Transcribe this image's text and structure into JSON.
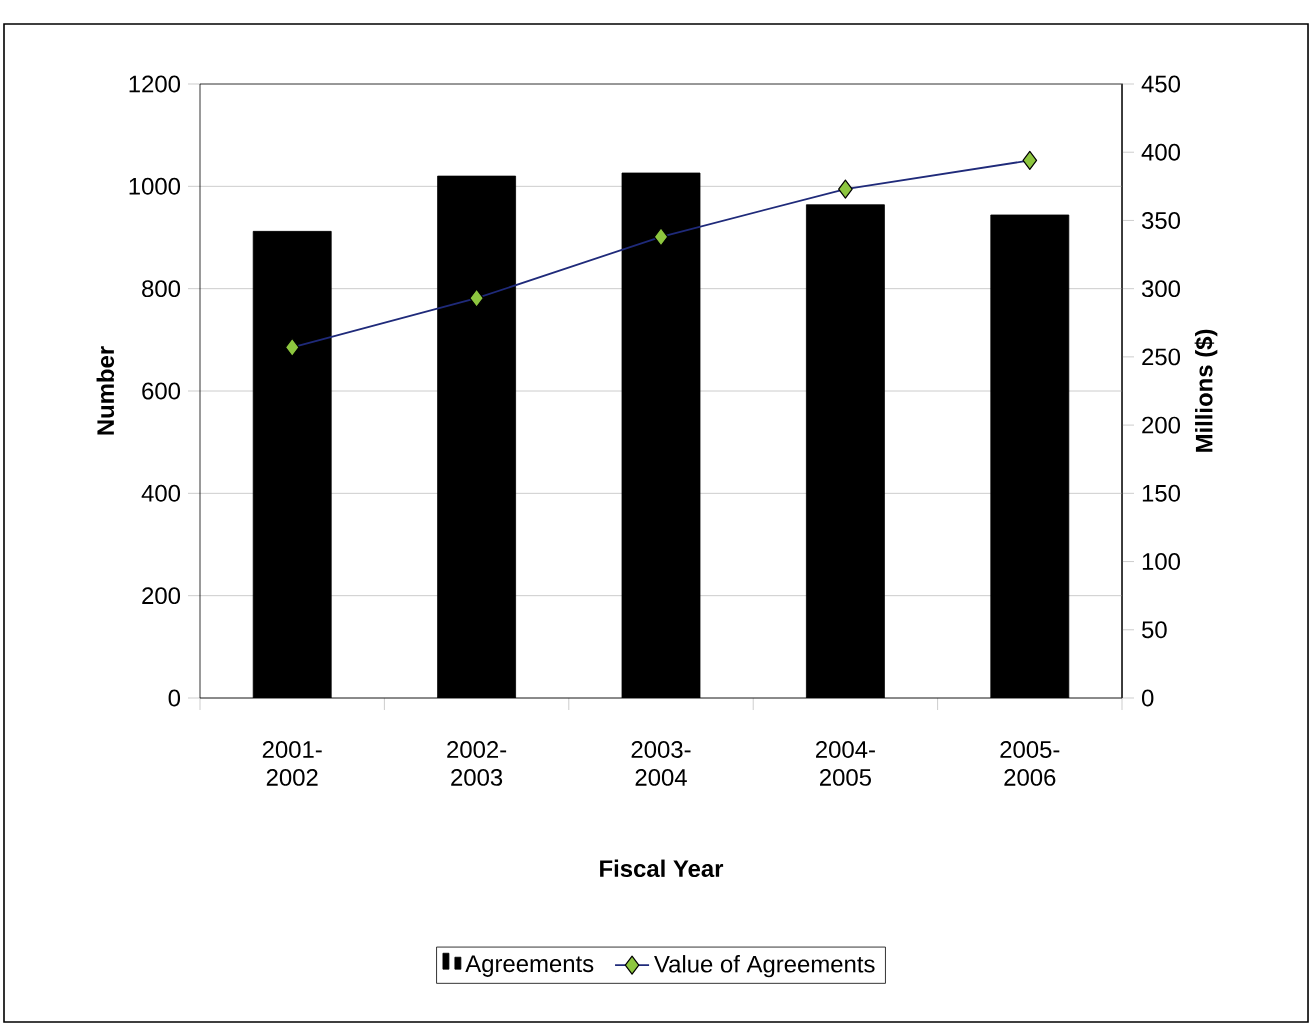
{
  "chart_data": {
    "type": "bar",
    "xlabel": "Fiscal Year",
    "ylabel": "Number",
    "y2label": "Millions ($)",
    "categories": [
      "2001-2002",
      "2002-2003",
      "2003-2004",
      "2004-2005",
      "2005-2006"
    ],
    "series": [
      {
        "name": "Agreements",
        "color": "#000000",
        "values": [
          912,
          1020,
          1026,
          964,
          944
        ]
      },
      {
        "name": "Value of Agreements",
        "type": "line",
        "axis": "y2",
        "color": "#1f2a7a",
        "marker": "diamond",
        "values": [
          257,
          293,
          338,
          373,
          394
        ]
      }
    ],
    "ylim": [
      0,
      1200
    ],
    "yticks": [
      0,
      200,
      400,
      600,
      800,
      1000,
      1200
    ],
    "y2lim": [
      0,
      450
    ],
    "y2ticks": [
      0,
      50,
      100,
      150,
      200,
      250,
      300,
      350,
      400,
      450
    ],
    "grid": "y",
    "legend": "bottom"
  }
}
